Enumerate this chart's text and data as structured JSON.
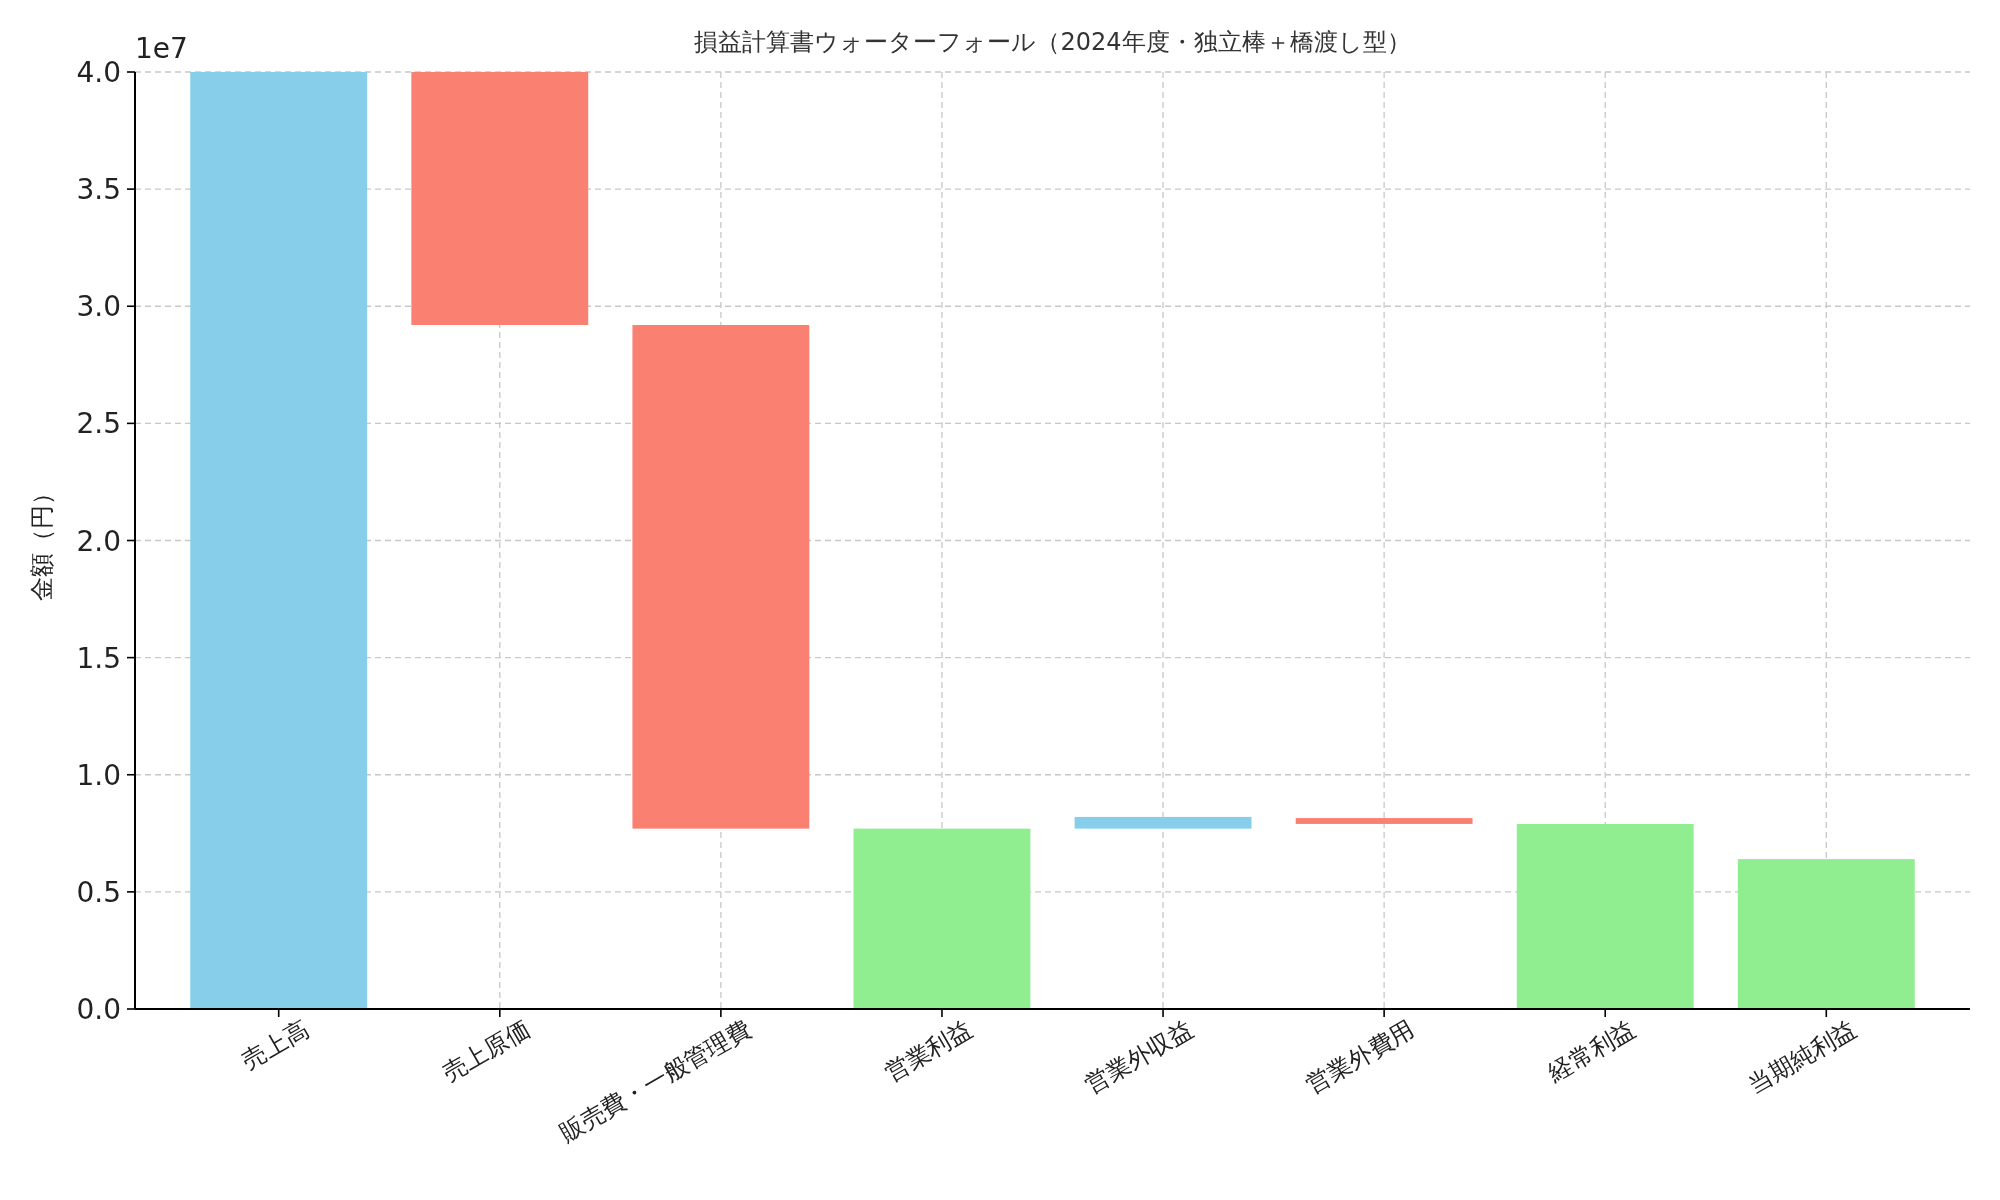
{
  "chart_data": {
    "type": "bar",
    "title": "損益計算書ウォーターフォール（2024年度・独立棒＋橋渡し型）",
    "ylabel": "金額（円）",
    "annotations": [
      "1e7"
    ],
    "categories": [
      "売上高",
      "売上原価",
      "販売費・一般管理費",
      "営業利益",
      "営業外収益",
      "営業外費用",
      "経常利益",
      "当期純利益"
    ],
    "values": [
      4.0,
      1.08,
      2.15,
      0.77,
      0.05,
      0.025,
      0.79,
      0.64
    ],
    "base": [
      0,
      2.92,
      0.77,
      0,
      0.77,
      0.79,
      0,
      0
    ],
    "colors": [
      "#87ceeb",
      "#fa8072",
      "#fa8072",
      "#90ee90",
      "#87ceeb",
      "#fa8072",
      "#90ee90",
      "#90ee90"
    ],
    "ylim": [
      0,
      4.0
    ],
    "yticks": [
      {
        "value": 0,
        "label": "0.0"
      },
      0.5,
      {
        "value": 1,
        "label": "1.0"
      },
      1.5,
      {
        "value": 2,
        "label": "2.0"
      },
      2.5,
      {
        "value": 3,
        "label": "3.0"
      },
      3.5,
      {
        "value": 4,
        "label": "4.0"
      }
    ],
    "grid": true
  }
}
